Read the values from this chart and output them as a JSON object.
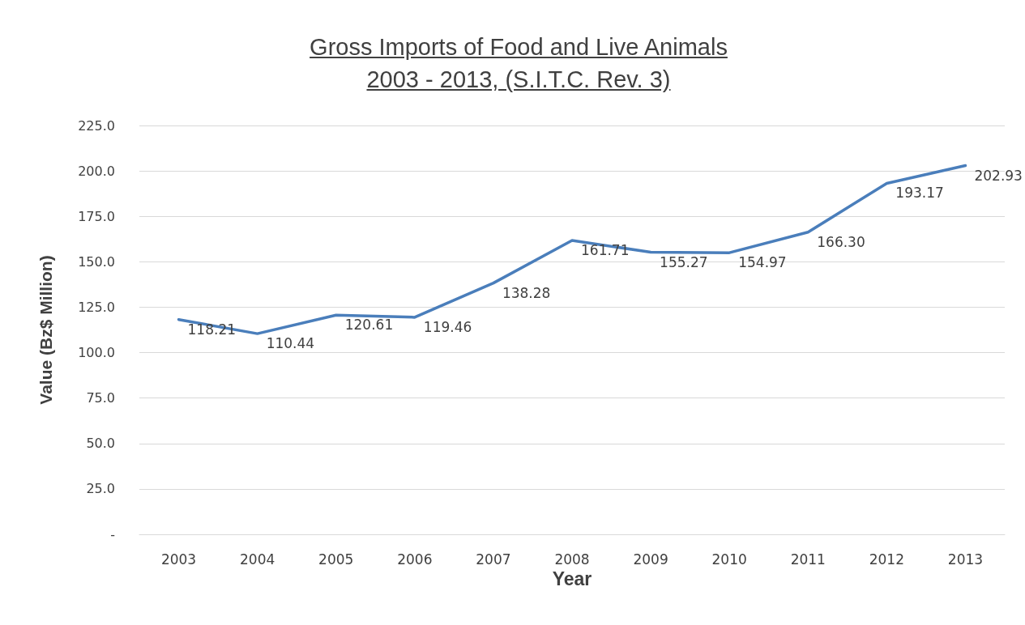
{
  "chart_data": {
    "type": "line",
    "title": "Gross Imports of Food and Live Animals\n2003 - 2013, (S.I.T.C. Rev. 3)",
    "xlabel": "Year",
    "ylabel": "Value (Bz$ Million)",
    "categories": [
      "2003",
      "2004",
      "2005",
      "2006",
      "2007",
      "2008",
      "2009",
      "2010",
      "2011",
      "2012",
      "2013"
    ],
    "series": [
      {
        "color": "#4a7ebb",
        "values": [
          118.21,
          110.44,
          120.61,
          119.46,
          138.28,
          161.71,
          155.27,
          154.97,
          166.3,
          193.17,
          202.93
        ],
        "value_labels": [
          "118.21",
          "110.44",
          "120.61",
          "119.46",
          "138.28",
          "161.71",
          "155.27",
          "154.97",
          "166.30",
          "193.17",
          "202.93"
        ]
      }
    ],
    "ylim": [
      0,
      225
    ],
    "yticks": [
      {
        "value": 0,
        "label": "-"
      },
      {
        "value": 25,
        "label": "25.0"
      },
      {
        "value": 50,
        "label": "50.0"
      },
      {
        "value": 75,
        "label": "75.0"
      },
      {
        "value": 100,
        "label": "100.0"
      },
      {
        "value": 125,
        "label": "125.0"
      },
      {
        "value": 150,
        "label": "150.0"
      },
      {
        "value": 175,
        "label": "175.0"
      },
      {
        "value": 200,
        "label": "200.0"
      },
      {
        "value": 225,
        "label": "225.0"
      }
    ],
    "grid": "y",
    "marker": "none",
    "line_style": "solid"
  }
}
